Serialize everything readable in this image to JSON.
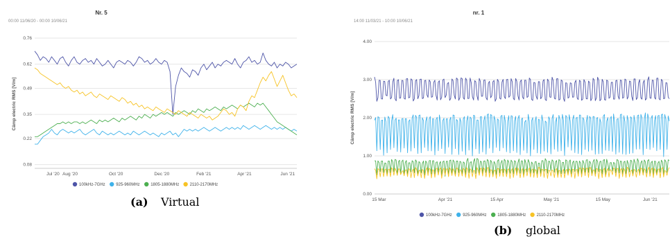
{
  "chart_data": [
    {
      "type": "line",
      "title": "Nr. 5",
      "subtitle": "00:00 11/06/20 - 00:00 10/06/21",
      "ylabel": "Câmp electric RMS [V/m]",
      "xlabel": "",
      "ylim": [
        0.06,
        0.76
      ],
      "yticks": [
        "0.76",
        "0.62",
        "0.49",
        "0.35",
        "0.22",
        "0.08"
      ],
      "xticks": [
        "Jul '20",
        "Aug '20",
        "Oct '20",
        "Dec '20",
        "Feb '21",
        "Apr '21",
        "Jun '21"
      ],
      "grid": true,
      "legend_position": "bottom",
      "caption_label": "(a)",
      "caption_text": "Virtual",
      "series": [
        {
          "name": "100kHz-7GHz",
          "color": "#4e55a8",
          "values": [
            0.69,
            0.67,
            0.64,
            0.66,
            0.65,
            0.63,
            0.66,
            0.64,
            0.62,
            0.65,
            0.66,
            0.63,
            0.61,
            0.64,
            0.66,
            0.63,
            0.62,
            0.64,
            0.65,
            0.63,
            0.64,
            0.62,
            0.65,
            0.63,
            0.61,
            0.62,
            0.64,
            0.62,
            0.6,
            0.63,
            0.64,
            0.63,
            0.62,
            0.64,
            0.63,
            0.61,
            0.63,
            0.66,
            0.65,
            0.63,
            0.64,
            0.62,
            0.63,
            0.65,
            0.63,
            0.62,
            0.64,
            0.63,
            0.58,
            0.35,
            0.5,
            0.56,
            0.6,
            0.58,
            0.57,
            0.55,
            0.59,
            0.58,
            0.56,
            0.6,
            0.62,
            0.59,
            0.61,
            0.63,
            0.6,
            0.62,
            0.61,
            0.63,
            0.64,
            0.63,
            0.62,
            0.65,
            0.62,
            0.6,
            0.63,
            0.64,
            0.66,
            0.63,
            0.64,
            0.62,
            0.63,
            0.68,
            0.64,
            0.62,
            0.61,
            0.63,
            0.6,
            0.62,
            0.61,
            0.63,
            0.62,
            0.6,
            0.61,
            0.62
          ]
        },
        {
          "name": "925-960MHz",
          "color": "#3fb2ea",
          "values": [
            0.19,
            0.19,
            0.21,
            0.23,
            0.24,
            0.25,
            0.27,
            0.25,
            0.24,
            0.26,
            0.27,
            0.26,
            0.25,
            0.26,
            0.25,
            0.26,
            0.27,
            0.25,
            0.24,
            0.25,
            0.26,
            0.27,
            0.25,
            0.24,
            0.26,
            0.25,
            0.24,
            0.25,
            0.24,
            0.25,
            0.26,
            0.25,
            0.24,
            0.25,
            0.24,
            0.26,
            0.25,
            0.24,
            0.25,
            0.26,
            0.25,
            0.24,
            0.25,
            0.24,
            0.23,
            0.25,
            0.24,
            0.25,
            0.26,
            0.24,
            0.25,
            0.23,
            0.25,
            0.27,
            0.26,
            0.27,
            0.26,
            0.27,
            0.26,
            0.27,
            0.28,
            0.27,
            0.26,
            0.27,
            0.28,
            0.27,
            0.26,
            0.27,
            0.28,
            0.27,
            0.28,
            0.27,
            0.28,
            0.27,
            0.29,
            0.28,
            0.27,
            0.28,
            0.29,
            0.28,
            0.27,
            0.28,
            0.29,
            0.28,
            0.27,
            0.28,
            0.27,
            0.28,
            0.27,
            0.28,
            0.27,
            0.26,
            0.27,
            0.26
          ]
        },
        {
          "name": "1805-1880MHz",
          "color": "#4caf50",
          "values": [
            0.23,
            0.23,
            0.24,
            0.25,
            0.26,
            0.27,
            0.28,
            0.29,
            0.3,
            0.3,
            0.31,
            0.3,
            0.31,
            0.3,
            0.31,
            0.31,
            0.3,
            0.31,
            0.3,
            0.31,
            0.32,
            0.31,
            0.3,
            0.32,
            0.31,
            0.32,
            0.31,
            0.32,
            0.33,
            0.32,
            0.31,
            0.33,
            0.32,
            0.33,
            0.34,
            0.33,
            0.32,
            0.34,
            0.33,
            0.35,
            0.34,
            0.33,
            0.35,
            0.34,
            0.35,
            0.36,
            0.35,
            0.36,
            0.35,
            0.34,
            0.36,
            0.35,
            0.36,
            0.37,
            0.36,
            0.35,
            0.37,
            0.36,
            0.38,
            0.37,
            0.36,
            0.38,
            0.37,
            0.38,
            0.39,
            0.38,
            0.37,
            0.39,
            0.38,
            0.39,
            0.4,
            0.39,
            0.38,
            0.4,
            0.39,
            0.4,
            0.41,
            0.4,
            0.39,
            0.41,
            0.4,
            0.41,
            0.39,
            0.37,
            0.35,
            0.33,
            0.31,
            0.3,
            0.29,
            0.28,
            0.27,
            0.26,
            0.25,
            0.24
          ]
        },
        {
          "name": "2110-2170MHz",
          "color": "#f7c325",
          "values": [
            0.6,
            0.59,
            0.57,
            0.56,
            0.55,
            0.54,
            0.53,
            0.52,
            0.51,
            0.52,
            0.5,
            0.49,
            0.5,
            0.48,
            0.47,
            0.48,
            0.46,
            0.47,
            0.45,
            0.46,
            0.47,
            0.45,
            0.44,
            0.46,
            0.45,
            0.44,
            0.43,
            0.45,
            0.44,
            0.43,
            0.42,
            0.44,
            0.43,
            0.41,
            0.42,
            0.4,
            0.41,
            0.39,
            0.4,
            0.38,
            0.39,
            0.38,
            0.37,
            0.39,
            0.38,
            0.37,
            0.36,
            0.38,
            0.37,
            0.36,
            0.35,
            0.37,
            0.36,
            0.35,
            0.34,
            0.36,
            0.35,
            0.34,
            0.33,
            0.35,
            0.34,
            0.33,
            0.34,
            0.32,
            0.33,
            0.34,
            0.36,
            0.38,
            0.37,
            0.35,
            0.36,
            0.34,
            0.38,
            0.4,
            0.39,
            0.37,
            0.42,
            0.45,
            0.44,
            0.48,
            0.52,
            0.55,
            0.53,
            0.56,
            0.58,
            0.54,
            0.5,
            0.53,
            0.56,
            0.52,
            0.48,
            0.45,
            0.46,
            0.44
          ]
        }
      ]
    },
    {
      "type": "line",
      "title": "nr. 1",
      "subtitle": "14:00 11/03/21 - 10:00 10/06/21",
      "ylabel": "Câmp electric RMS [V/m]",
      "xlabel": "",
      "ylim": [
        0,
        4
      ],
      "yticks": [
        "4.00",
        "3.00",
        "2.00",
        "1.00",
        "0.00"
      ],
      "xticks": [
        "15 Mar",
        "Apr '21",
        "15 Apr",
        "May '21",
        "15 May",
        "Jun '21"
      ],
      "grid": true,
      "legend_position": "bottom",
      "caption_label": "(b)",
      "caption_text": "global",
      "series": [
        {
          "name": "100kHz-7GHz",
          "color": "#4e55a8",
          "base": 2.75,
          "amp": 0.3,
          "period": 4
        },
        {
          "name": "925-960MHz",
          "color": "#3fb2ea",
          "base": 1.55,
          "amp": 0.55,
          "period": 3
        },
        {
          "name": "1805-1880MHz",
          "color": "#4caf50",
          "base": 0.7,
          "amp": 0.2,
          "period": 3
        },
        {
          "name": "2110-2170MHz",
          "color": "#f7c325",
          "base": 0.55,
          "amp": 0.12,
          "period": 3
        }
      ]
    }
  ]
}
